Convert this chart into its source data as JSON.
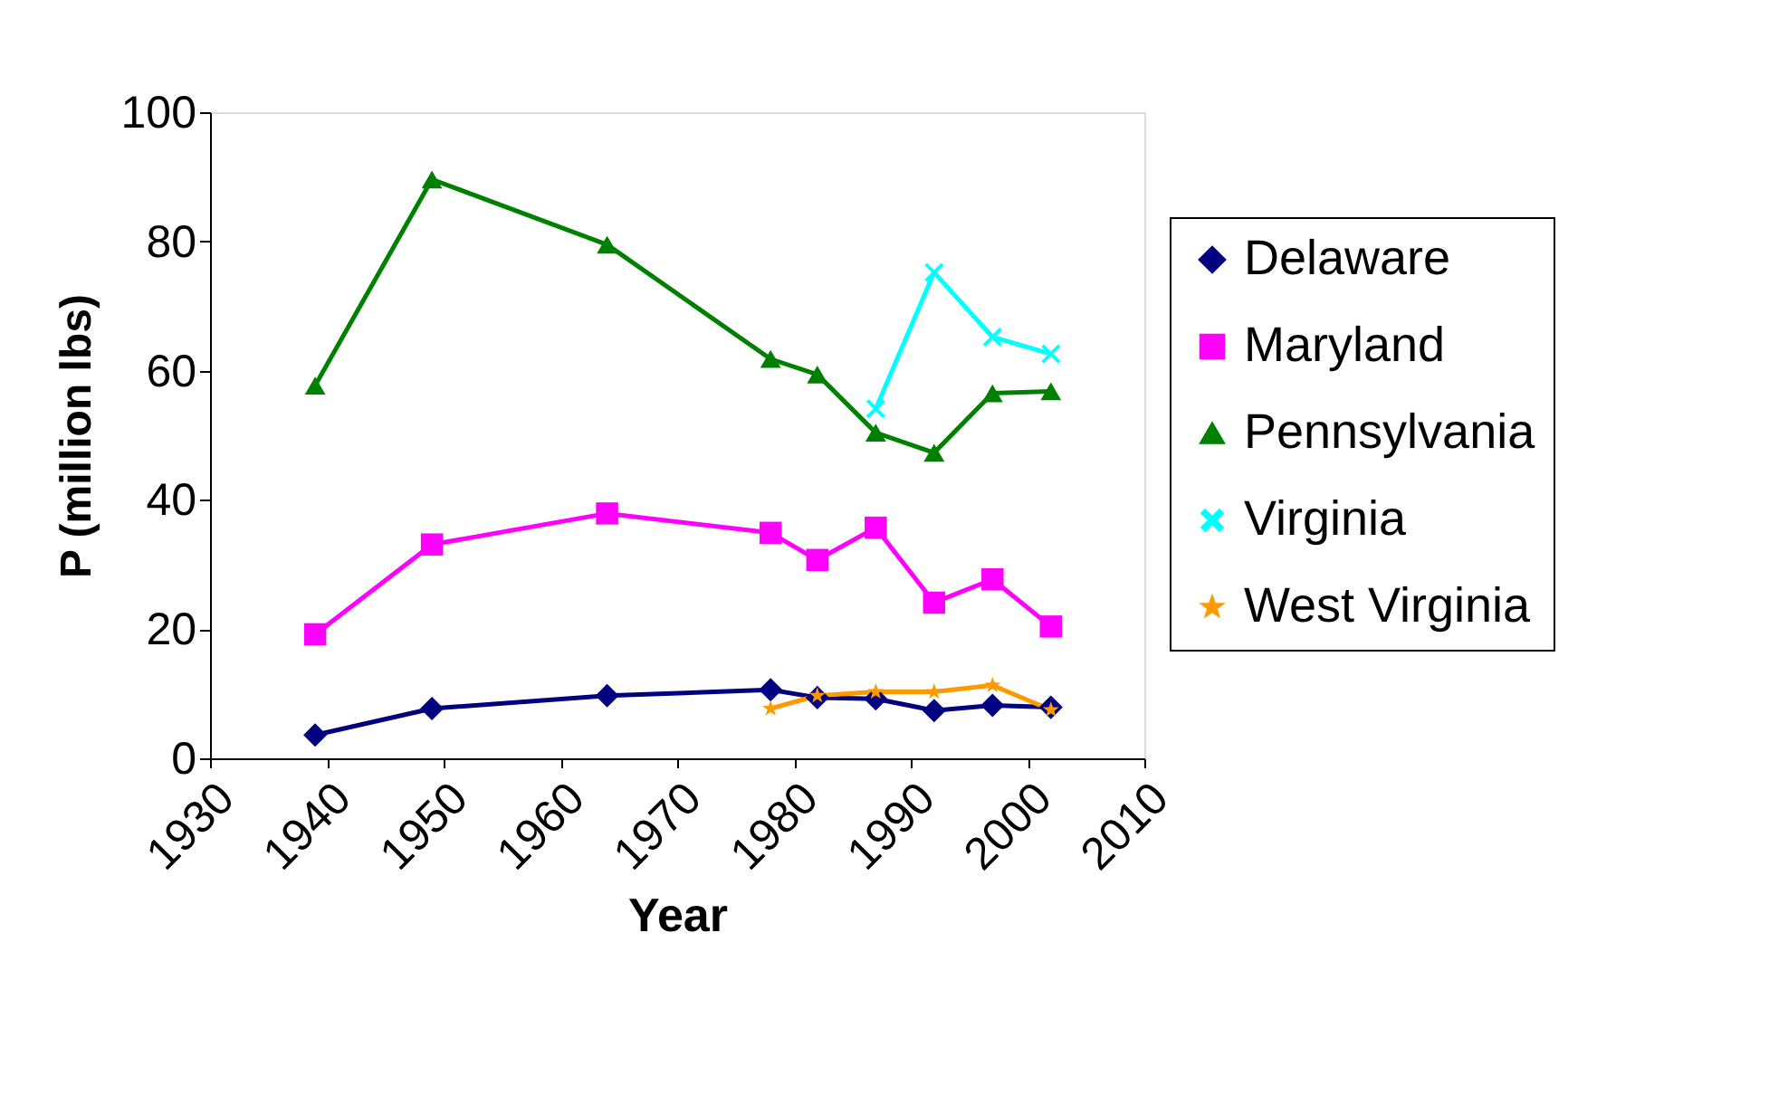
{
  "chart_data": {
    "type": "line",
    "xlabel": "Year",
    "ylabel": "P (million lbs)",
    "xlim": [
      1930,
      2010
    ],
    "xticks": [
      1930,
      1940,
      1950,
      1960,
      1970,
      1980,
      1990,
      2000,
      2010
    ],
    "ylim": [
      0,
      100
    ],
    "yticks": [
      0,
      20,
      40,
      60,
      80,
      100
    ],
    "grid": false,
    "legend": "right",
    "series": [
      {
        "name": "Delaware",
        "color": "#000080",
        "marker": "diamond",
        "x": [
          1939,
          1949,
          1964,
          1978,
          1982,
          1987,
          1992,
          1997,
          2002
        ],
        "values": [
          3.6,
          7.7,
          9.7,
          10.6,
          9.4,
          9.2,
          7.4,
          8.2,
          7.9
        ]
      },
      {
        "name": "Maryland",
        "color": "#ff00ff",
        "marker": "square",
        "x": [
          1939,
          1949,
          1964,
          1978,
          1982,
          1987,
          1992,
          1997,
          2002
        ],
        "values": [
          19.2,
          33.1,
          37.9,
          34.9,
          30.7,
          35.7,
          24.1,
          27.7,
          20.4
        ]
      },
      {
        "name": "Pennsylvania",
        "color": "#008000",
        "marker": "triangle",
        "x": [
          1939,
          1949,
          1964,
          1978,
          1982,
          1987,
          1992,
          1997,
          2002
        ],
        "values": [
          57.7,
          89.6,
          79.5,
          61.8,
          59.4,
          50.4,
          47.3,
          56.5,
          56.8
        ]
      },
      {
        "name": "Virginia",
        "color": "#00ffff",
        "marker": "cross",
        "x": [
          1987,
          1992,
          1997,
          2002
        ],
        "values": [
          54.1,
          75.2,
          65.2,
          62.6
        ]
      },
      {
        "name": "West Virginia",
        "color": "#ff9900",
        "marker": "star",
        "x": [
          1978,
          1982,
          1987,
          1992,
          1997,
          2002
        ],
        "values": [
          7.7,
          9.7,
          10.3,
          10.3,
          11.3,
          7.5
        ]
      }
    ]
  }
}
